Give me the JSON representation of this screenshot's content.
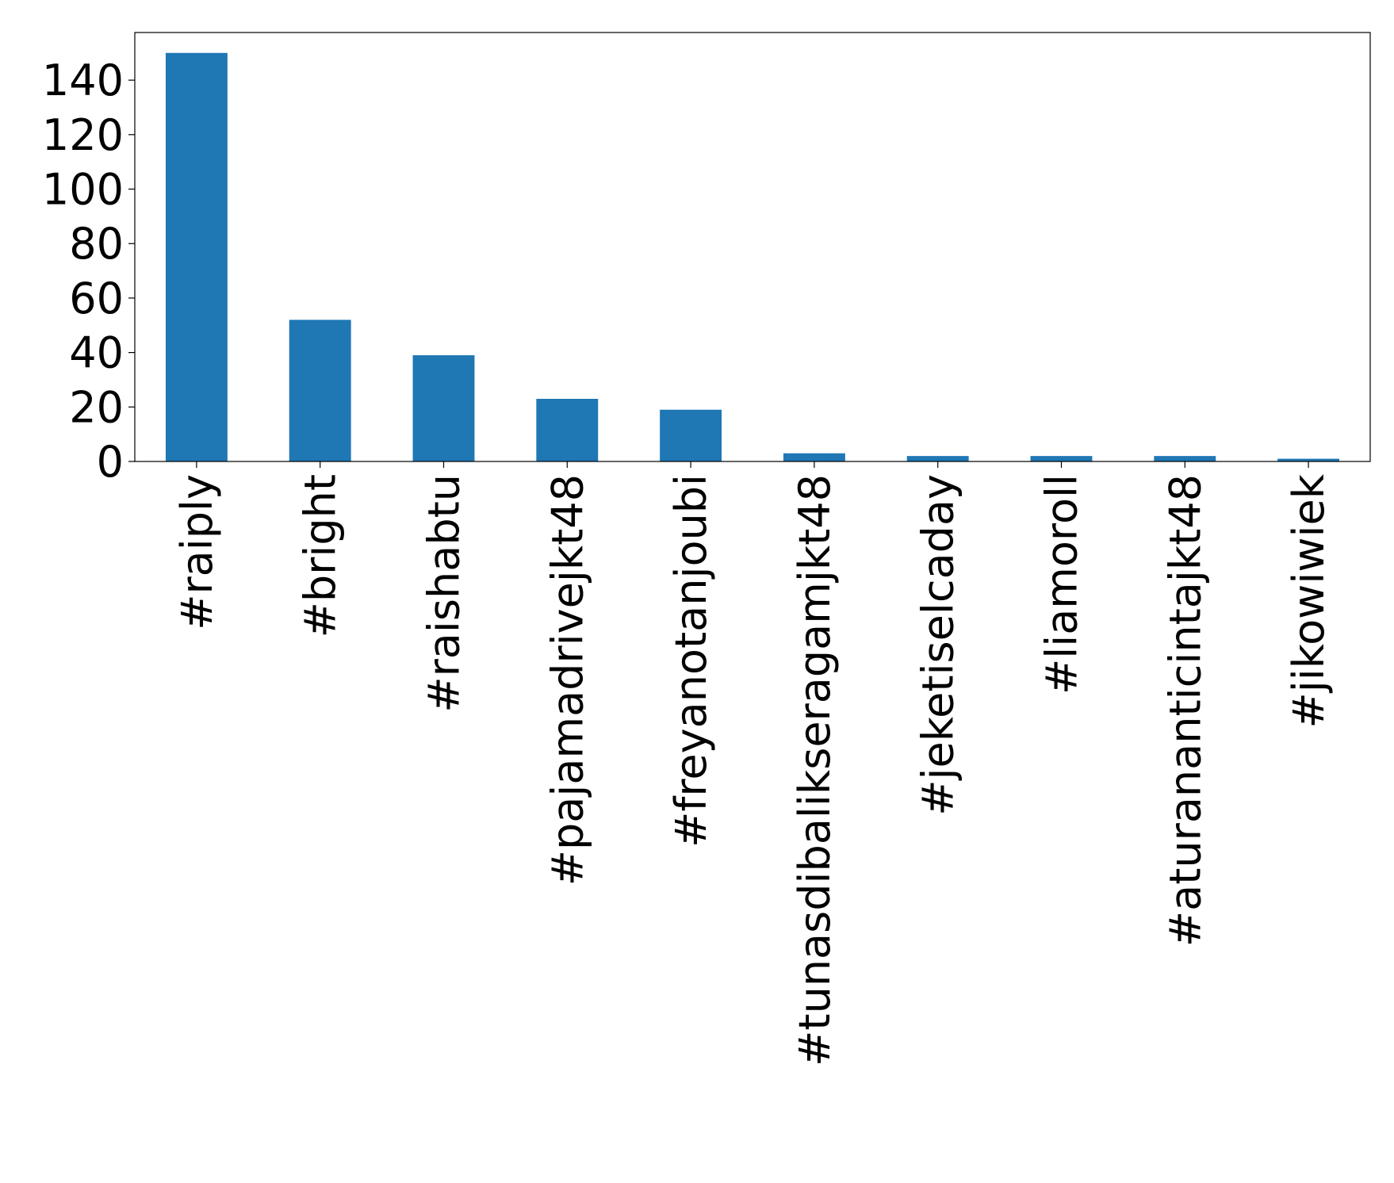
{
  "chart_data": {
    "type": "bar",
    "categories": [
      "#raiply",
      "#bright",
      "#raishabtu",
      "#pajamadrivejkt48",
      "#freyanotanjoubi",
      "#tunasdibalikseragamjkt48",
      "#jeketiselcaday",
      "#liamoroll",
      "#aturananticintajkt48",
      "#jikowiwiek"
    ],
    "values": [
      150,
      52,
      39,
      23,
      19,
      3,
      2,
      2,
      2,
      1
    ],
    "color": "#1f77b4",
    "ylim": [
      0,
      157.5
    ],
    "yticks": [
      0,
      20,
      40,
      60,
      80,
      100,
      120,
      140
    ]
  }
}
